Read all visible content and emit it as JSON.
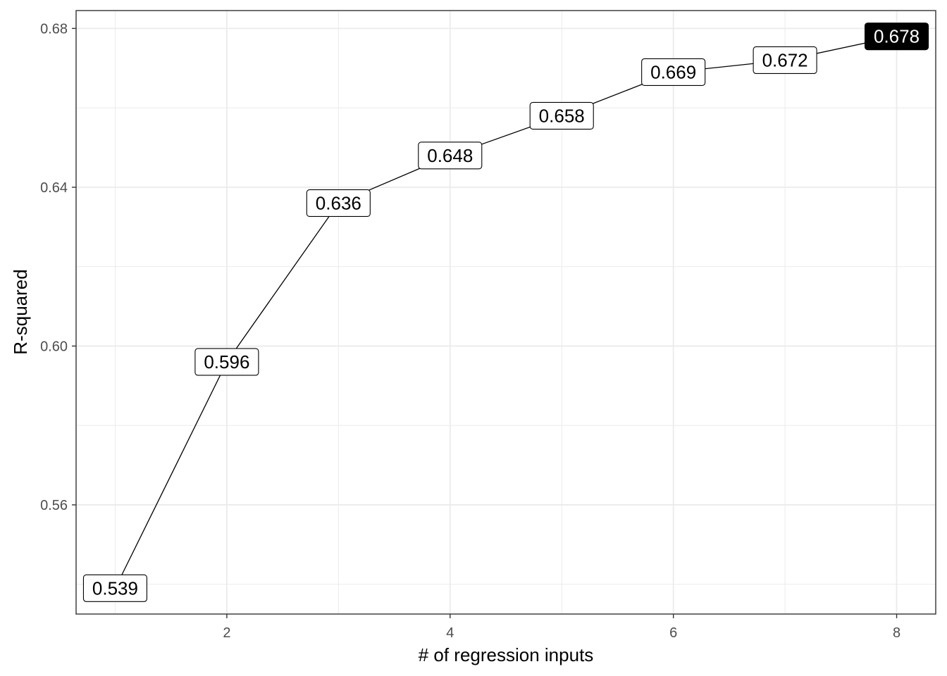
{
  "chart_data": {
    "type": "line",
    "x": [
      1,
      2,
      3,
      4,
      5,
      6,
      7,
      8
    ],
    "y": [
      0.539,
      0.596,
      0.636,
      0.648,
      0.658,
      0.669,
      0.672,
      0.678
    ],
    "labels": [
      "0.539",
      "0.596",
      "0.636",
      "0.648",
      "0.658",
      "0.669",
      "0.672",
      "0.678"
    ],
    "highlighted_index": 7,
    "xlabel": "# of regression inputs",
    "ylabel": "R-squared",
    "xlim": [
      0.65,
      8.35
    ],
    "ylim": [
      0.5325,
      0.6845
    ],
    "x_ticks": [
      2,
      4,
      6,
      8
    ],
    "x_tick_labels": [
      "2",
      "4",
      "6",
      "8"
    ],
    "y_ticks": [
      0.56,
      0.6,
      0.64,
      0.68
    ],
    "y_tick_labels": [
      "0.56",
      "0.60",
      "0.64",
      "0.68"
    ],
    "x_minor_ticks": [
      1,
      3,
      5,
      7
    ],
    "y_minor_ticks": [
      0.54,
      0.58,
      0.62,
      0.66
    ],
    "grid": true,
    "colors": {
      "line": "#000000",
      "grid": "#ebebeb",
      "label_fill": "#ffffff",
      "label_text": "#000000",
      "highlight_fill": "#000000",
      "highlight_text": "#ffffff"
    }
  }
}
